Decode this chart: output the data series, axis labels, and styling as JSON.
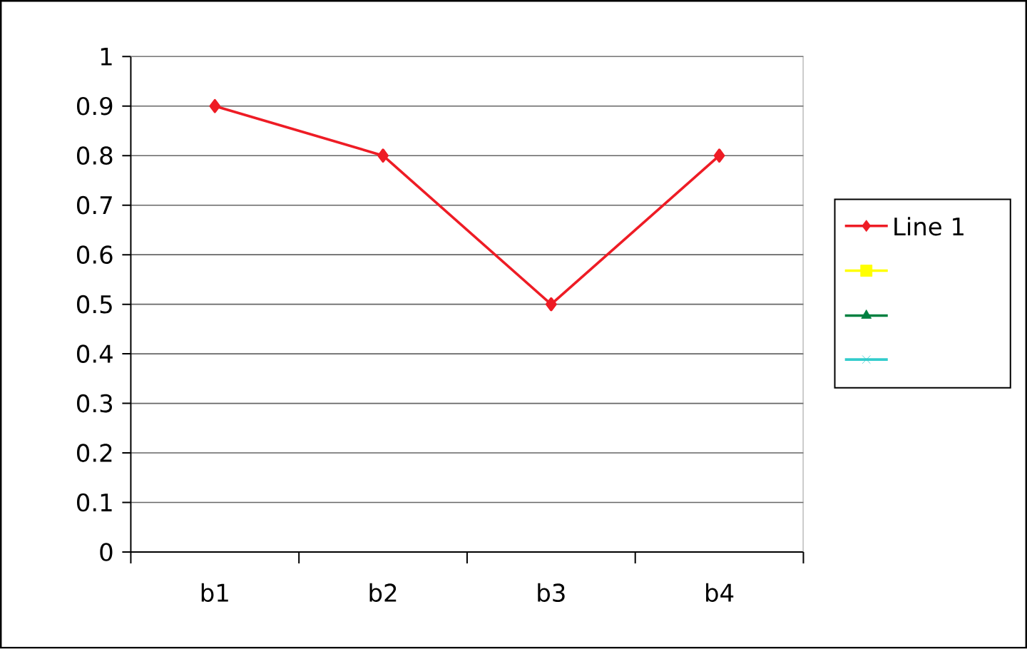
{
  "chart_data": {
    "type": "line",
    "categories": [
      "b1",
      "b2",
      "b3",
      "b4"
    ],
    "series": [
      {
        "name": "Line 1",
        "color": "#ee1c25",
        "marker": "diamond",
        "values": [
          0.9,
          0.8,
          0.5,
          0.8
        ]
      },
      {
        "color": "#ffff00",
        "marker": "square",
        "values": [
          null,
          null,
          null,
          null
        ]
      },
      {
        "color": "#008040",
        "marker": "triangle",
        "values": [
          null,
          null,
          null,
          null
        ]
      },
      {
        "color": "#33cccc",
        "marker": "cross",
        "values": [
          null,
          null,
          null,
          null
        ]
      }
    ],
    "ylim": [
      0,
      1
    ],
    "yticks": [
      0,
      0.1,
      0.2,
      0.3,
      0.4,
      0.5,
      0.6,
      0.7,
      0.8,
      0.9,
      1
    ],
    "grid": "y",
    "legend": "right",
    "line_style": "solid"
  }
}
